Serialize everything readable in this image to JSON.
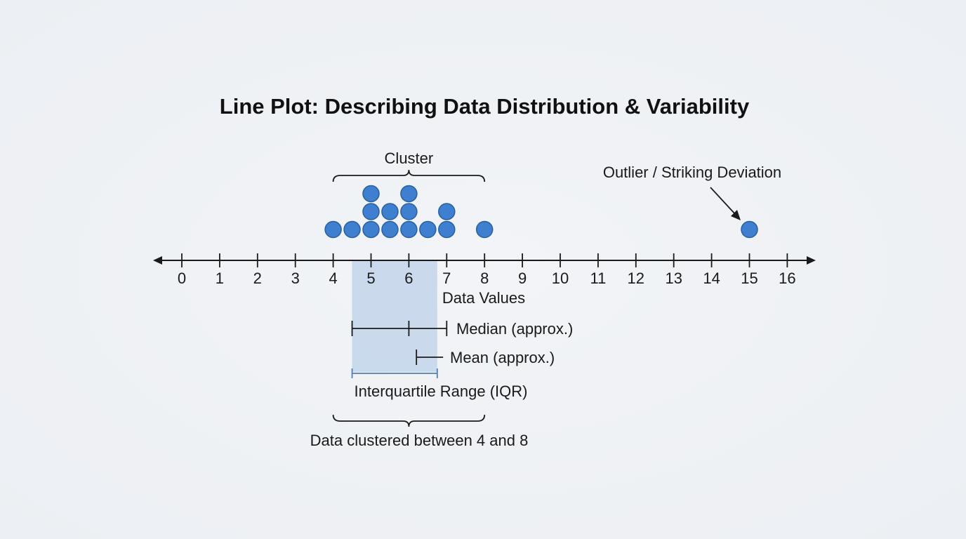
{
  "chart_data": {
    "type": "scatter",
    "subtype": "dot-plot",
    "title": "Line Plot: Describing Data Distribution & Variability",
    "xlabel": "Data Values",
    "xlim": [
      0,
      16
    ],
    "ticks": [
      "0",
      "1",
      "2",
      "3",
      "4",
      "5",
      "6",
      "7",
      "8",
      "9",
      "10",
      "11",
      "12",
      "13",
      "14",
      "15",
      "16"
    ],
    "points": [
      {
        "x": 4,
        "count": 1
      },
      {
        "x": 4.5,
        "count": 1
      },
      {
        "x": 5,
        "count": 3
      },
      {
        "x": 5.5,
        "count": 2
      },
      {
        "x": 6,
        "count": 3
      },
      {
        "x": 6.5,
        "count": 1
      },
      {
        "x": 7,
        "count": 2
      },
      {
        "x": 8,
        "count": 1
      },
      {
        "x": 15,
        "count": 1
      }
    ],
    "dot_color": "#3f7fd0",
    "iqr_color": "#aac4e4",
    "annotations": {
      "cluster": {
        "label": "Cluster",
        "from": 4,
        "to": 8
      },
      "outlier": {
        "label": "Outlier / Striking Deviation",
        "x": 15
      },
      "median": {
        "label": "Median (approx.)",
        "x": 6,
        "from": 4.5,
        "to": 7
      },
      "mean": {
        "label": "Mean (approx.)",
        "x": 6.2
      },
      "iqr": {
        "label": "Interquartile Range (IQR)",
        "from": 4.5,
        "to": 6.75
      },
      "clustered_range": {
        "label": "Data clustered between 4 and 8",
        "from": 4,
        "to": 8
      }
    }
  }
}
